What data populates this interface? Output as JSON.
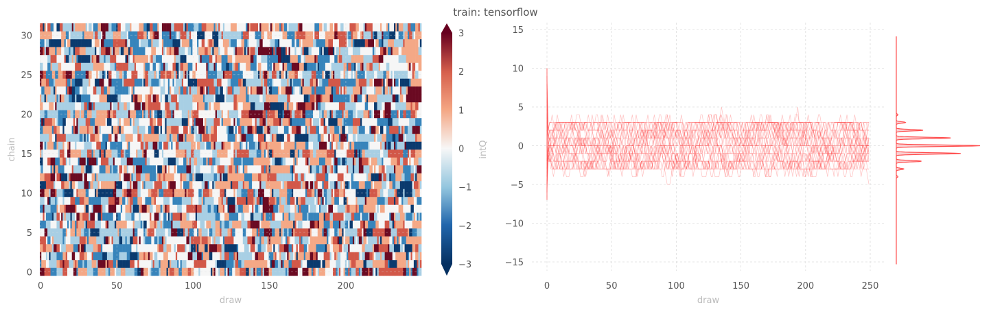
{
  "chart_data": [
    {
      "type": "heatmap",
      "title": "train: tensorflow",
      "xlabel": "draw",
      "ylabel": "chain",
      "colorbar_label": "intQ",
      "n_chains": 32,
      "n_draws": 250,
      "xlim": [
        0,
        250
      ],
      "ylim": [
        0,
        32
      ],
      "xticks": [
        "0",
        "50",
        "100",
        "150",
        "200"
      ],
      "xtick_values": [
        0,
        50,
        100,
        150,
        200
      ],
      "yticks": [
        "0",
        "5",
        "10",
        "15",
        "20",
        "25",
        "30"
      ],
      "ytick_values": [
        0,
        5,
        10,
        15,
        20,
        25,
        30
      ],
      "vmin": -3,
      "vmax": 3,
      "colorbar_ticks": [
        "3",
        "2",
        "1",
        "0",
        "−1",
        "−2",
        "−3"
      ],
      "colorbar_tick_values": [
        3,
        2,
        1,
        0,
        -1,
        -2,
        -3
      ],
      "colormap": "RdBu_r",
      "colors": {
        "-3": "#0b3a6e",
        "-2": "#3784bb",
        "-1": "#a8cfe4",
        "0": "#f6f6f6",
        "1": "#f4a886",
        "2": "#d25849",
        "3": "#6b0a22"
      },
      "value_distribution": {
        "-3": 0.07,
        "-2": 0.13,
        "-1": 0.2,
        "0": 0.2,
        "1": 0.2,
        "2": 0.13,
        "3": 0.07
      },
      "grid": true
    },
    {
      "type": "line",
      "xlabel": "draw",
      "ylabel": "",
      "xlim": [
        -12,
        262
      ],
      "ylim": [
        -16.5,
        16
      ],
      "xticks": [
        "0",
        "50",
        "100",
        "150",
        "200",
        "250"
      ],
      "xtick_values": [
        0,
        50,
        100,
        150,
        200,
        250
      ],
      "yticks": [
        "15",
        "10",
        "5",
        "0",
        "−5",
        "−10",
        "−15"
      ],
      "ytick_values": [
        15,
        10,
        5,
        0,
        -5,
        -10,
        -15
      ],
      "n_series": 32,
      "series_color": "#ff4d4d",
      "initial_spike_range": [
        -7,
        10
      ],
      "typical_range": [
        -3,
        3
      ],
      "extreme_range": [
        -5,
        5
      ],
      "grid": true,
      "marginal_kde": {
        "orientation": "vertical",
        "color": "#ff4d4d",
        "fill": "#f7c6c8",
        "peaks": [
          {
            "value": -4,
            "density": 0.02
          },
          {
            "value": -3,
            "density": 0.09
          },
          {
            "value": -2,
            "density": 0.3
          },
          {
            "value": -1,
            "density": 0.77
          },
          {
            "value": 0,
            "density": 1.0
          },
          {
            "value": 1,
            "density": 0.65
          },
          {
            "value": 2,
            "density": 0.32
          },
          {
            "value": 3,
            "density": 0.11
          },
          {
            "value": 4,
            "density": 0.02
          }
        ]
      }
    }
  ]
}
